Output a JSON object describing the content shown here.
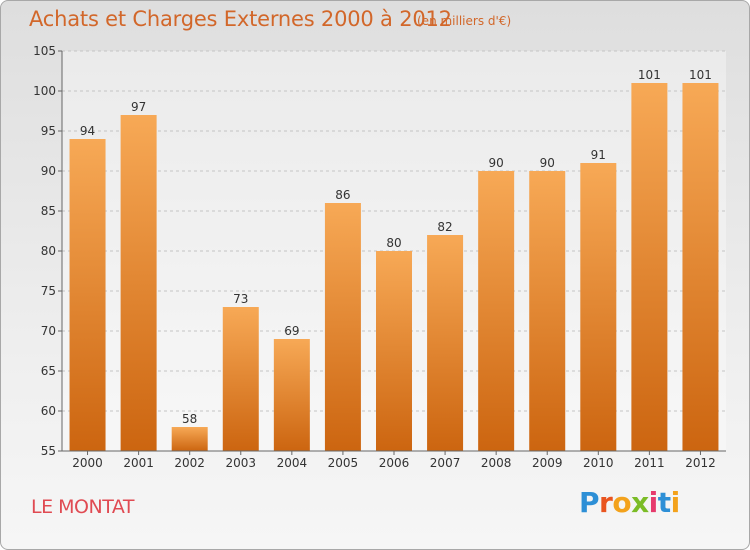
{
  "header": {
    "title": "Achats et Charges Externes 2000 à 2012",
    "subtitle": "(en milliers d'€)"
  },
  "footer": {
    "commune": "LE MONTAT"
  },
  "logo": {
    "text": "Proxiti",
    "letter_colors": [
      "#2d8fd6",
      "#e9541f",
      "#f3a21c",
      "#7bbc26",
      "#e63a6c",
      "#2d8fd6",
      "#f3a21c"
    ]
  },
  "colors": {
    "bar_top": "#f7a956",
    "bar_bottom": "#cc6510",
    "title": "#d2672a",
    "commune": "#e04a52"
  },
  "chart_data": {
    "type": "bar",
    "title": "Achats et Charges Externes 2000 à 2012",
    "subtitle": "(en milliers d'€)",
    "categories": [
      "2000",
      "2001",
      "2002",
      "2003",
      "2004",
      "2005",
      "2006",
      "2007",
      "2008",
      "2009",
      "2010",
      "2011",
      "2012"
    ],
    "values": [
      94,
      97,
      58,
      73,
      69,
      86,
      80,
      82,
      90,
      90,
      91,
      101,
      101
    ],
    "ylim": [
      55,
      105
    ],
    "yticks": [
      55,
      60,
      65,
      70,
      75,
      80,
      85,
      90,
      95,
      100,
      105
    ],
    "grid": true,
    "xlabel": "",
    "ylabel": ""
  }
}
